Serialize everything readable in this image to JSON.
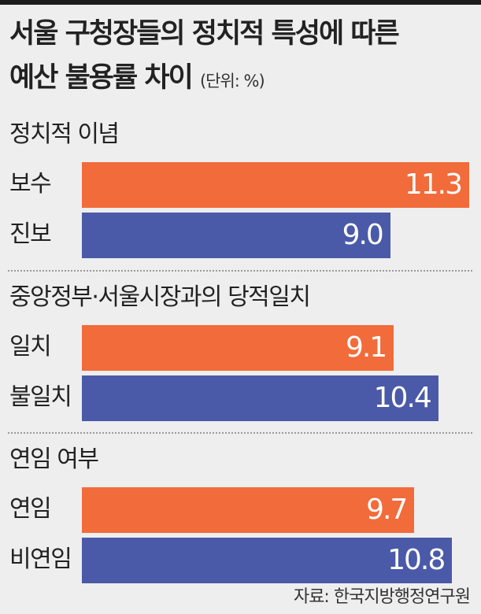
{
  "title_line1": "서울 구청장들의 정치적 특성에 따른",
  "title_line2": "예산 불용률 차이",
  "unit": "(단위: %)",
  "source": "자료: 한국지방행정연구원",
  "colors": {
    "first": "#f26b3a",
    "second": "#4a5aa8"
  },
  "chart_data": {
    "type": "bar",
    "orientation": "horizontal",
    "xlim": [
      0,
      11.3
    ],
    "groups": [
      {
        "title": "정치적 이념",
        "categories": [
          "보수",
          "진보"
        ],
        "values": [
          11.3,
          9.0
        ],
        "labels": [
          "11.3",
          "9.0"
        ]
      },
      {
        "title": "중앙정부·서울시장과의 당적일치",
        "categories": [
          "일치",
          "불일치"
        ],
        "values": [
          9.1,
          10.4
        ],
        "labels": [
          "9.1",
          "10.4"
        ]
      },
      {
        "title": "연임 여부",
        "categories": [
          "연임",
          "비연임"
        ],
        "values": [
          9.7,
          10.8
        ],
        "labels": [
          "9.7",
          "10.8"
        ]
      }
    ]
  }
}
